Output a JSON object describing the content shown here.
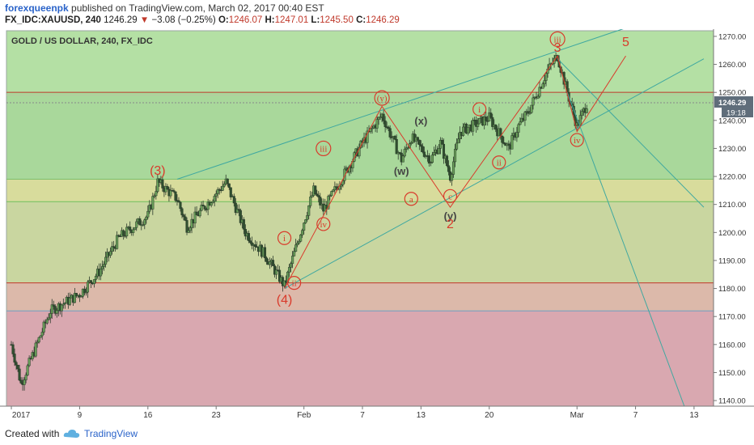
{
  "header": {
    "author": "forexqueenpk",
    "published": " published on TradingView.com, March 02, 2017 00:40 EST",
    "symbol": "FX_IDC:XAUUSD, 240",
    "last": "1246.29",
    "arrow": "▼",
    "change": "−3.08 (−0.25%)",
    "o_label": "O:",
    "o_value": "1246.07",
    "h_label": "H:",
    "h_value": "1247.01",
    "l_label": "L:",
    "l_value": "1245.50",
    "c_label": "C:",
    "c_value": "1246.29"
  },
  "chart_title": "GOLD / US DOLLAR, 240, FX_IDC",
  "footer": {
    "created_with": "Created with",
    "brand": "TradingView"
  },
  "colors": {
    "up_candle": "#4a7a3a",
    "down_candle": "#2f4f2f",
    "wave_red": "#d93a2b",
    "channel_teal": "#3fa8a0",
    "axis_text": "#333333",
    "price_label_bg": "#5f6d7a"
  },
  "chart_data": {
    "type": "candlestick",
    "title": "GOLD / US DOLLAR, 240, FX_IDC",
    "x_axis": {
      "labels": [
        "2017",
        "9",
        "16",
        "23",
        "Feb",
        "7",
        "13",
        "20",
        "Mar",
        "7",
        "13"
      ],
      "dates": [
        "2017-01-02",
        "2017-01-09",
        "2017-01-16",
        "2017-01-23",
        "2017-02-01",
        "2017-02-07",
        "2017-02-13",
        "2017-02-20",
        "2017-03-01",
        "2017-03-07",
        "2017-03-13"
      ]
    },
    "y_axis": {
      "range": [
        1138,
        1272
      ],
      "ticks": [
        1140,
        1150,
        1160,
        1170,
        1180,
        1190,
        1200,
        1210,
        1220,
        1230,
        1240,
        1250,
        1260,
        1270
      ],
      "labels": [
        "1140.00",
        "1150.00",
        "1160.00",
        "1170.00",
        "1180.00",
        "1190.00",
        "1200.00",
        "1210.00",
        "1220.00",
        "1230.00",
        "1240.00",
        "1250.00",
        "1260.00",
        "1270.00"
      ]
    },
    "last_price": {
      "value": 1246.29,
      "label": "1246.29",
      "countdown": "19:18"
    },
    "zones": [
      {
        "from": 1250,
        "to": 1272,
        "color": "#b4e0a4"
      },
      {
        "from": 1219,
        "to": 1250,
        "color": "#a9d89b"
      },
      {
        "from": 1211,
        "to": 1219,
        "color": "#d8dc9c"
      },
      {
        "from": 1182,
        "to": 1211,
        "color": "#c9d6a0"
      },
      {
        "from": 1172,
        "to": 1182,
        "color": "#dcb9aa"
      },
      {
        "from": 1138,
        "to": 1172,
        "color": "#d9a8b0"
      }
    ],
    "horizontal_lines": [
      {
        "price": 1250,
        "color": "#c0392b"
      },
      {
        "price": 1249,
        "color": "#b8c8a0"
      },
      {
        "price": 1219,
        "color": "#7cc06c"
      },
      {
        "price": 1211,
        "color": "#6fbf5c"
      },
      {
        "price": 1182,
        "color": "#c0392b"
      },
      {
        "price": 1172,
        "color": "#6f9fc0"
      }
    ],
    "waypoints": [
      {
        "t": "2017-01-02",
        "p": 1160
      },
      {
        "t": "2017-01-03",
        "p": 1146
      },
      {
        "t": "2017-01-06",
        "p": 1172
      },
      {
        "t": "2017-01-09",
        "p": 1178
      },
      {
        "t": "2017-01-11",
        "p": 1186
      },
      {
        "t": "2017-01-13",
        "p": 1198
      },
      {
        "t": "2017-01-16",
        "p": 1206
      },
      {
        "t": "2017-01-17",
        "p": 1218
      },
      {
        "t": "2017-01-19",
        "p": 1212
      },
      {
        "t": "2017-01-20",
        "p": 1202
      },
      {
        "t": "2017-01-22",
        "p": 1210
      },
      {
        "t": "2017-01-24",
        "p": 1218
      },
      {
        "t": "2017-01-26",
        "p": 1200
      },
      {
        "t": "2017-01-28",
        "p": 1192
      },
      {
        "t": "2017-01-30",
        "p": 1181
      },
      {
        "t": "2017-02-01",
        "p": 1204
      },
      {
        "t": "2017-02-02",
        "p": 1215
      },
      {
        "t": "2017-02-03",
        "p": 1208
      },
      {
        "t": "2017-02-05",
        "p": 1220
      },
      {
        "t": "2017-02-07",
        "p": 1232
      },
      {
        "t": "2017-02-09",
        "p": 1242
      },
      {
        "t": "2017-02-11",
        "p": 1226
      },
      {
        "t": "2017-02-12",
        "p": 1234
      },
      {
        "t": "2017-02-14",
        "p": 1226
      },
      {
        "t": "2017-02-15",
        "p": 1232
      },
      {
        "t": "2017-02-16",
        "p": 1220
      },
      {
        "t": "2017-02-17",
        "p": 1236
      },
      {
        "t": "2017-02-20",
        "p": 1241
      },
      {
        "t": "2017-02-22",
        "p": 1230
      },
      {
        "t": "2017-02-23",
        "p": 1238
      },
      {
        "t": "2017-02-24",
        "p": 1243
      },
      {
        "t": "2017-02-26",
        "p": 1258
      },
      {
        "t": "2017-02-27",
        "p": 1263
      },
      {
        "t": "2017-02-28",
        "p": 1250
      },
      {
        "t": "2017-03-01",
        "p": 1238
      },
      {
        "t": "2017-03-02",
        "p": 1246
      }
    ],
    "trend_lines": [
      {
        "from": {
          "t": "2017-01-19",
          "p": 1219
        },
        "to": {
          "t": "2017-03-06",
          "p": 1273
        },
        "color": "#3fa8a0"
      },
      {
        "from": {
          "t": "2017-01-30",
          "p": 1180
        },
        "to": {
          "t": "2017-03-14",
          "p": 1262
        },
        "color": "#3fa8a0"
      },
      {
        "from": {
          "t": "2017-02-27",
          "p": 1262
        },
        "to": {
          "t": "2017-03-14",
          "p": 1209
        },
        "color": "#3fa8a0"
      },
      {
        "from": {
          "t": "2017-02-28",
          "p": 1250
        },
        "to": {
          "t": "2017-03-12",
          "p": 1138
        },
        "color": "#3fa8a0"
      }
    ],
    "wave_path": [
      {
        "t": "2017-01-30",
        "p": 1180
      },
      {
        "t": "2017-02-09",
        "p": 1245
      },
      {
        "t": "2017-02-16",
        "p": 1209
      },
      {
        "t": "2017-02-27",
        "p": 1263
      },
      {
        "t": "2017-03-01",
        "p": 1236
      },
      {
        "t": "2017-03-06",
        "p": 1263
      }
    ],
    "annotations": [
      {
        "text": "(3)",
        "t": "2017-01-17",
        "p": 1222,
        "style": "red-text"
      },
      {
        "text": "(4)",
        "t": "2017-01-30",
        "p": 1176,
        "style": "red-text"
      },
      {
        "text": "i",
        "t": "2017-01-30",
        "p": 1198,
        "style": "red-circle"
      },
      {
        "text": "ii",
        "t": "2017-01-31",
        "p": 1182,
        "style": "red-circle"
      },
      {
        "text": "iii",
        "t": "2017-02-03",
        "p": 1230,
        "style": "red-circle"
      },
      {
        "text": "iv",
        "t": "2017-02-03",
        "p": 1203,
        "style": "red-circle"
      },
      {
        "text": "(y)",
        "t": "2017-02-09",
        "p": 1248,
        "style": "red-circle"
      },
      {
        "text": "(w)",
        "t": "2017-02-11",
        "p": 1222,
        "style": "dark-text"
      },
      {
        "text": "(x)",
        "t": "2017-02-13",
        "p": 1240,
        "style": "dark-text"
      },
      {
        "text": "a",
        "t": "2017-02-12",
        "p": 1212,
        "style": "red-circle"
      },
      {
        "text": "c",
        "t": "2017-02-16",
        "p": 1213,
        "style": "red-circle"
      },
      {
        "text": "(y)",
        "t": "2017-02-16",
        "p": 1206,
        "style": "dark-text"
      },
      {
        "text": "2",
        "t": "2017-02-16",
        "p": 1203,
        "style": "red-text"
      },
      {
        "text": "i",
        "t": "2017-02-19",
        "p": 1244,
        "style": "red-circle"
      },
      {
        "text": "ii",
        "t": "2017-02-21",
        "p": 1225,
        "style": "red-circle"
      },
      {
        "text": "iii",
        "t": "2017-02-27",
        "p": 1269,
        "style": "red-circle"
      },
      {
        "text": "3",
        "t": "2017-02-27",
        "p": 1266,
        "style": "red-text"
      },
      {
        "text": "iv",
        "t": "2017-03-01",
        "p": 1233,
        "style": "red-circle"
      },
      {
        "text": "5",
        "t": "2017-03-06",
        "p": 1268,
        "style": "red-text"
      }
    ]
  }
}
